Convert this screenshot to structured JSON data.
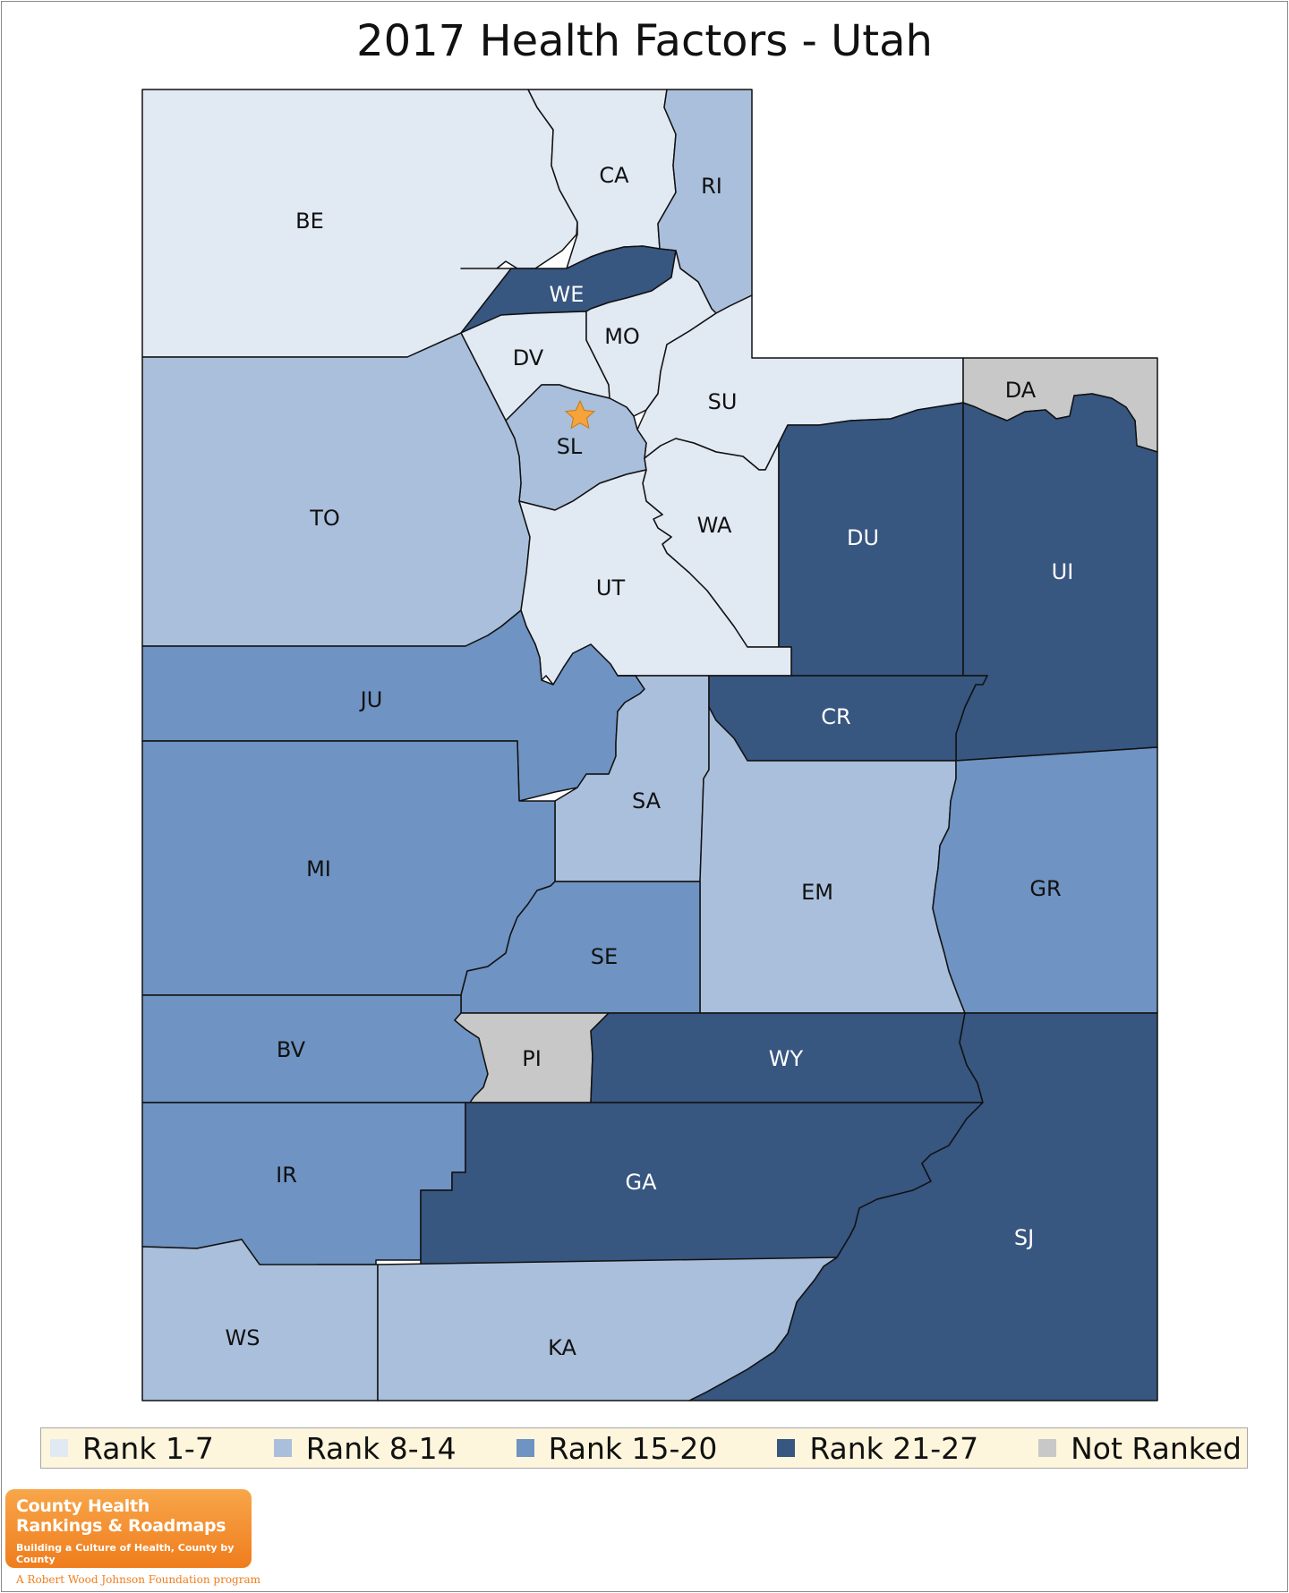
{
  "title": "2017 Health Factors - Utah",
  "colors": {
    "rank_1_7": "#e1e9f3",
    "rank_8_14": "#aabfdb",
    "rank_15_20": "#6f93c2",
    "rank_21_27": "#375680",
    "not_ranked": "#c8c8c8"
  },
  "legend": [
    {
      "label": "Rank 1-7",
      "color_key": "rank_1_7"
    },
    {
      "label": "Rank 8-14",
      "color_key": "rank_8_14"
    },
    {
      "label": "Rank 15-20",
      "color_key": "rank_15_20"
    },
    {
      "label": "Rank 21-27",
      "color_key": "rank_21_27"
    },
    {
      "label": "Not Ranked",
      "color_key": "not_ranked"
    }
  ],
  "counties": [
    {
      "code": "BE",
      "rank_group": "rank_1_7"
    },
    {
      "code": "CA",
      "rank_group": "rank_1_7"
    },
    {
      "code": "RI",
      "rank_group": "rank_8_14"
    },
    {
      "code": "WE",
      "rank_group": "rank_21_27"
    },
    {
      "code": "MO",
      "rank_group": "rank_1_7"
    },
    {
      "code": "DV",
      "rank_group": "rank_1_7"
    },
    {
      "code": "SU",
      "rank_group": "rank_1_7"
    },
    {
      "code": "DA",
      "rank_group": "not_ranked"
    },
    {
      "code": "SL",
      "rank_group": "rank_8_14"
    },
    {
      "code": "TO",
      "rank_group": "rank_8_14"
    },
    {
      "code": "WA",
      "rank_group": "rank_1_7"
    },
    {
      "code": "DU",
      "rank_group": "rank_21_27"
    },
    {
      "code": "UI",
      "rank_group": "rank_21_27"
    },
    {
      "code": "UT",
      "rank_group": "rank_1_7"
    },
    {
      "code": "JU",
      "rank_group": "rank_15_20"
    },
    {
      "code": "CR",
      "rank_group": "rank_21_27"
    },
    {
      "code": "SA",
      "rank_group": "rank_8_14"
    },
    {
      "code": "MI",
      "rank_group": "rank_15_20"
    },
    {
      "code": "EM",
      "rank_group": "rank_8_14"
    },
    {
      "code": "GR",
      "rank_group": "rank_15_20"
    },
    {
      "code": "SE",
      "rank_group": "rank_15_20"
    },
    {
      "code": "BV",
      "rank_group": "rank_15_20"
    },
    {
      "code": "PI",
      "rank_group": "not_ranked"
    },
    {
      "code": "WY",
      "rank_group": "rank_21_27"
    },
    {
      "code": "IR",
      "rank_group": "rank_15_20"
    },
    {
      "code": "GA",
      "rank_group": "rank_21_27"
    },
    {
      "code": "SJ",
      "rank_group": "rank_21_27"
    },
    {
      "code": "WS",
      "rank_group": "rank_8_14"
    },
    {
      "code": "KA",
      "rank_group": "rank_8_14"
    }
  ],
  "capital_marker": {
    "icon": "star-icon",
    "color": "#f5a33a"
  },
  "logo": {
    "line1": "County Health",
    "line2": "Rankings & Roadmaps",
    "tagline": "Building a Culture of Health, County by County",
    "footer": "A Robert Wood Johnson Foundation program"
  }
}
